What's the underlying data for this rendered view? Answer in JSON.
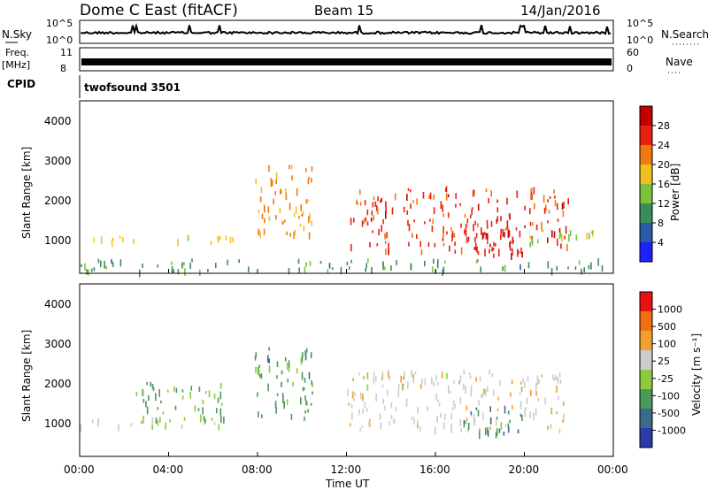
{
  "header": {
    "station": "Dome C East (fitACF)",
    "beam": "Beam 15",
    "date": "14/Jan/2016"
  },
  "top_panels": {
    "nsky_label": "N.Sky",
    "nsky_ticks": [
      "10^5",
      "10^0"
    ],
    "nsearch_label": "N.Search",
    "nsearch_ticks": [
      "10^5",
      "10^0"
    ],
    "freq_label": "Freq.",
    "freq_unit": "[MHz]",
    "freq_ticks": [
      "11",
      "8"
    ],
    "nave_label": "Nave",
    "nave_ticks": [
      "60",
      "0"
    ],
    "cpid_label": "CPID",
    "cpid_value": "twofsound 3501"
  },
  "power_panel": {
    "ylabel": "Slant Range [km]",
    "yticks": [
      "4000",
      "3000",
      "2000",
      "1000"
    ],
    "colorbar_label": "Power [dB]",
    "colorbar_ticks": [
      "28",
      "24",
      "20",
      "16",
      "12",
      "8",
      "4"
    ]
  },
  "velocity_panel": {
    "ylabel": "Slant Range [km]",
    "yticks": [
      "4000",
      "3000",
      "2000",
      "1000"
    ],
    "colorbar_label": "Velocity  [m s⁻¹]",
    "colorbar_ticks": [
      "1000",
      "500",
      "100",
      "25",
      "-25",
      "-100",
      "-500",
      "-1000"
    ]
  },
  "xaxis": {
    "label": "Time UT",
    "ticks": [
      "00:00",
      "04:00",
      "08:00",
      "12:00",
      "16:00",
      "20:00",
      "00:00"
    ]
  },
  "chart_data": [
    {
      "type": "heatmap",
      "title": "Power",
      "xlabel": "Time UT",
      "ylabel": "Slant Range [km]",
      "xlim": [
        0,
        24
      ],
      "ylim": [
        180,
        4500
      ],
      "clim": [
        0,
        30
      ],
      "colors": [
        "#2020ff",
        "#2a5aa8",
        "#3a8c5a",
        "#7cc23c",
        "#f0c020",
        "#f07a10",
        "#e82010",
        "#c00000"
      ],
      "features": [
        {
          "t": [
            0,
            7
          ],
          "r": [
            900,
            1100
          ],
          "v": 16
        },
        {
          "t": [
            0,
            24
          ],
          "r": [
            200,
            500
          ],
          "v": 10
        },
        {
          "t": [
            7.8,
            10.5
          ],
          "r": [
            1000,
            2900
          ],
          "v": 20
        },
        {
          "t": [
            12,
            22
          ],
          "r": [
            700,
            2300
          ],
          "v": 24
        },
        {
          "t": [
            17,
            20
          ],
          "r": [
            600,
            1300
          ],
          "v": 26
        },
        {
          "t": [
            20,
            24
          ],
          "r": [
            900,
            1200
          ],
          "v": 14
        }
      ]
    },
    {
      "type": "heatmap",
      "title": "Velocity",
      "xlabel": "Time UT",
      "ylabel": "Slant Range [km]",
      "xlim": [
        0,
        24
      ],
      "ylim": [
        180,
        4500
      ],
      "clim": [
        -1000,
        1000
      ],
      "colors": [
        "#2a3aa8",
        "#3a6a8c",
        "#4a9a5a",
        "#8ccc3c",
        "#cccccc",
        "#f0a030",
        "#f07010",
        "#e81010"
      ],
      "features": [
        {
          "t": [
            0,
            7
          ],
          "r": [
            900,
            1100
          ],
          "v": 0
        },
        {
          "t": [
            2.5,
            6.5
          ],
          "r": [
            1000,
            2000
          ],
          "v": -300
        },
        {
          "t": [
            7.8,
            10.5
          ],
          "r": [
            1000,
            2900
          ],
          "v": -400
        },
        {
          "t": [
            12,
            22
          ],
          "r": [
            800,
            2300
          ],
          "v": 150
        },
        {
          "t": [
            17,
            20
          ],
          "r": [
            700,
            1400
          ],
          "v": -500
        }
      ]
    }
  ]
}
